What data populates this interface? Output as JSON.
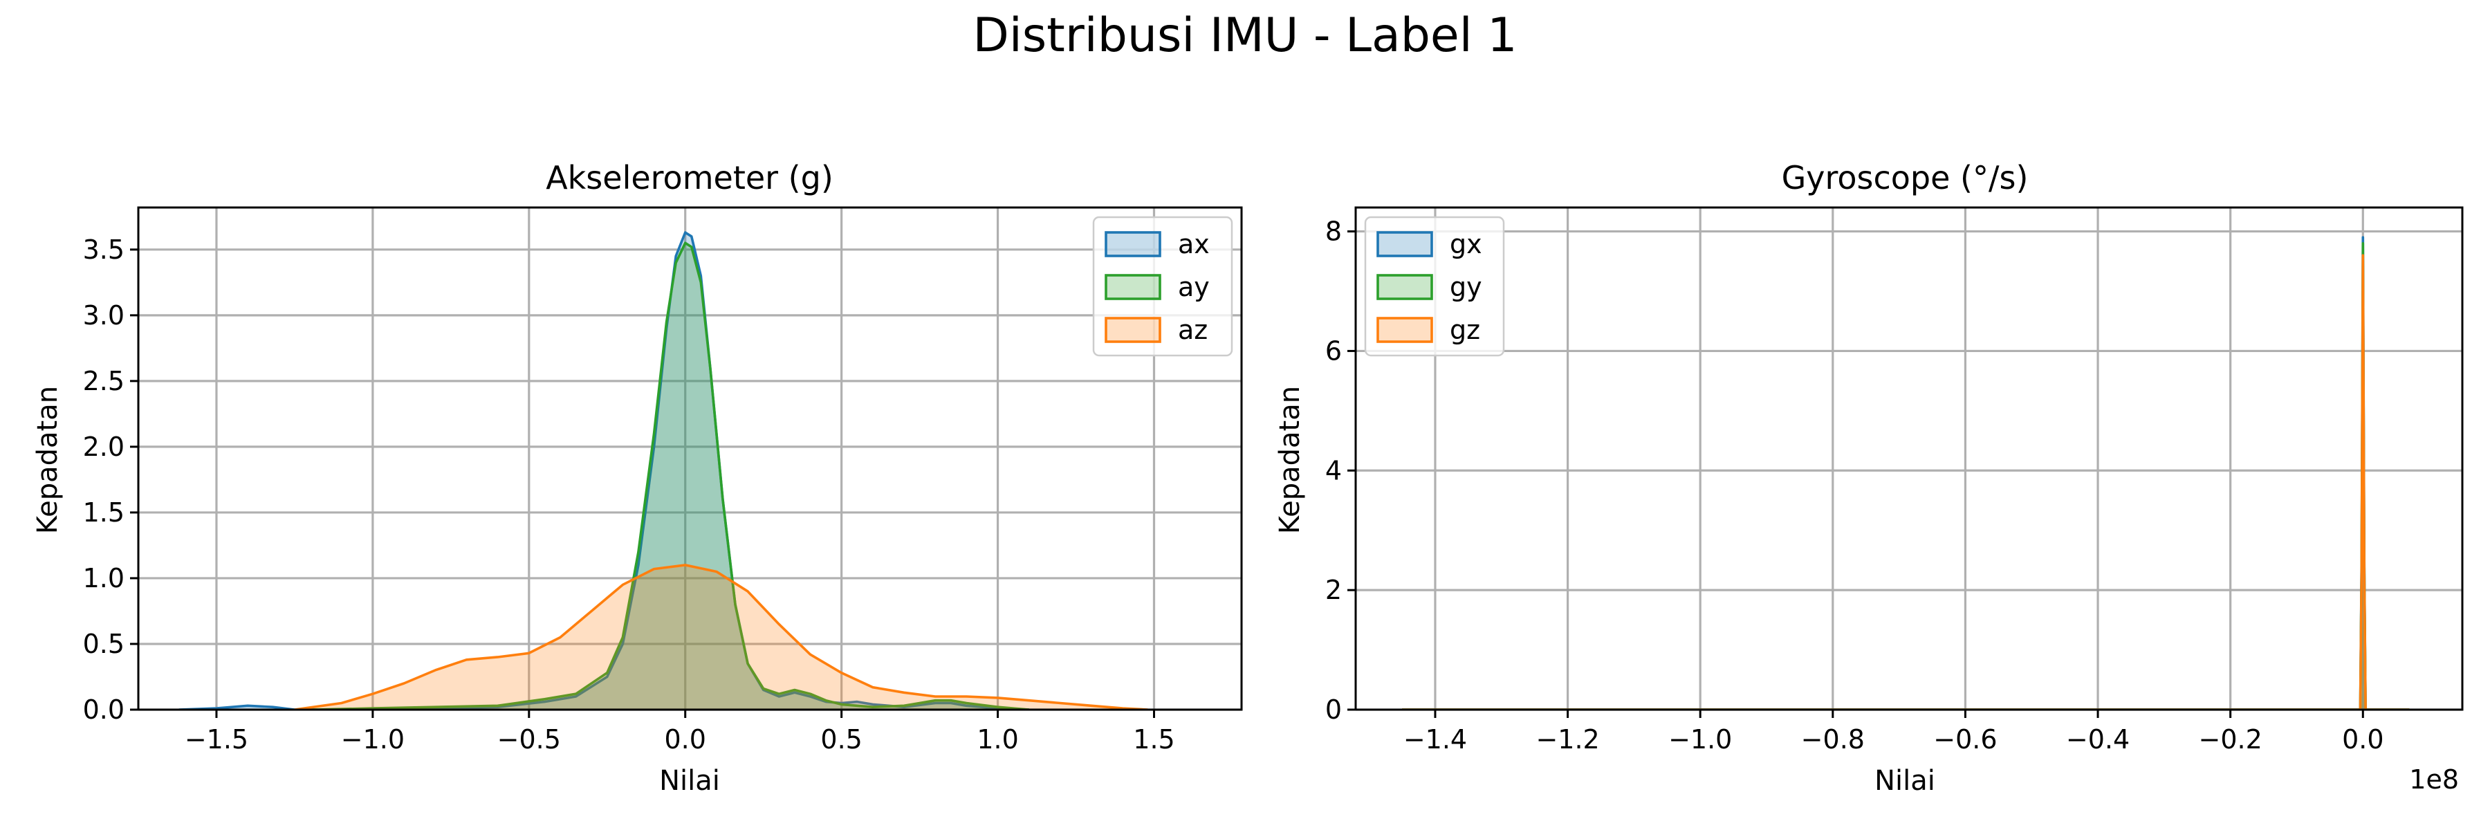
{
  "figure": {
    "suptitle": "Distribusi IMU - Label 1"
  },
  "chart_data": [
    {
      "type": "area",
      "title": "Akselerometer (g)",
      "xlabel": "Nilai",
      "ylabel": "Kepadatan",
      "xlim": [
        -1.75,
        1.78
      ],
      "ylim": [
        0,
        3.82
      ],
      "xticks": [
        -1.5,
        -1.0,
        -0.5,
        0.0,
        0.5,
        1.0,
        1.5
      ],
      "xtick_labels": [
        "−1.5",
        "−1.0",
        "−0.5",
        "0.0",
        "0.5",
        "1.0",
        "1.5"
      ],
      "yticks": [
        0.0,
        0.5,
        1.0,
        1.5,
        2.0,
        2.5,
        3.0,
        3.5
      ],
      "ytick_labels": [
        "0.0",
        "0.5",
        "1.0",
        "1.5",
        "2.0",
        "2.5",
        "3.0",
        "3.5"
      ],
      "grid": true,
      "legend_position": "upper-right",
      "series": [
        {
          "name": "ax",
          "color": "#1f77b4",
          "x": [
            -1.62,
            -1.5,
            -1.4,
            -1.32,
            -1.25,
            -1.0,
            -0.6,
            -0.45,
            -0.35,
            -0.25,
            -0.2,
            -0.15,
            -0.1,
            -0.06,
            -0.03,
            0.0,
            0.02,
            0.05,
            0.08,
            0.12,
            0.16,
            0.2,
            0.25,
            0.3,
            0.35,
            0.4,
            0.45,
            0.5,
            0.55,
            0.6,
            0.7,
            0.8,
            0.85,
            0.9,
            1.0,
            1.1
          ],
          "y": [
            0.0,
            0.01,
            0.03,
            0.02,
            0.0,
            0.0,
            0.02,
            0.06,
            0.1,
            0.25,
            0.5,
            1.1,
            2.0,
            2.9,
            3.45,
            3.63,
            3.6,
            3.3,
            2.6,
            1.6,
            0.8,
            0.35,
            0.15,
            0.1,
            0.13,
            0.1,
            0.06,
            0.05,
            0.06,
            0.04,
            0.02,
            0.05,
            0.05,
            0.03,
            0.01,
            0.0
          ]
        },
        {
          "name": "ay",
          "color": "#2ca02c",
          "x": [
            -1.2,
            -1.0,
            -0.6,
            -0.45,
            -0.35,
            -0.25,
            -0.2,
            -0.15,
            -0.1,
            -0.06,
            -0.03,
            0.0,
            0.02,
            0.05,
            0.08,
            0.12,
            0.16,
            0.2,
            0.25,
            0.3,
            0.35,
            0.4,
            0.45,
            0.5,
            0.55,
            0.6,
            0.7,
            0.8,
            0.85,
            0.9,
            1.0,
            1.1
          ],
          "y": [
            0.0,
            0.01,
            0.03,
            0.08,
            0.12,
            0.28,
            0.55,
            1.2,
            2.1,
            2.95,
            3.4,
            3.55,
            3.52,
            3.25,
            2.6,
            1.6,
            0.8,
            0.35,
            0.16,
            0.12,
            0.15,
            0.12,
            0.07,
            0.04,
            0.03,
            0.02,
            0.03,
            0.07,
            0.07,
            0.05,
            0.02,
            0.0
          ]
        },
        {
          "name": "az",
          "color": "#ff7f0e",
          "x": [
            -1.25,
            -1.1,
            -1.0,
            -0.9,
            -0.8,
            -0.7,
            -0.6,
            -0.5,
            -0.4,
            -0.3,
            -0.2,
            -0.1,
            0.0,
            0.1,
            0.2,
            0.3,
            0.4,
            0.5,
            0.6,
            0.7,
            0.8,
            0.9,
            1.0,
            1.1,
            1.2,
            1.3,
            1.4,
            1.48
          ],
          "y": [
            0.0,
            0.05,
            0.12,
            0.2,
            0.3,
            0.38,
            0.4,
            0.43,
            0.55,
            0.75,
            0.95,
            1.07,
            1.1,
            1.05,
            0.9,
            0.65,
            0.42,
            0.28,
            0.17,
            0.13,
            0.1,
            0.1,
            0.09,
            0.07,
            0.05,
            0.03,
            0.01,
            0.0
          ]
        }
      ]
    },
    {
      "type": "area",
      "title": "Gyroscope (°/s)",
      "xlabel": "Nilai",
      "ylabel": "Kepadatan",
      "x_multiplier": "1e8",
      "xlim": [
        -1.52,
        0.15
      ],
      "ylim": [
        0,
        8.4
      ],
      "xticks": [
        -1.4,
        -1.2,
        -1.0,
        -0.8,
        -0.6,
        -0.4,
        -0.2,
        0.0
      ],
      "xtick_labels": [
        "−1.4",
        "−1.2",
        "−1.0",
        "−0.8",
        "−0.6",
        "−0.4",
        "−0.2",
        "0.0"
      ],
      "yticks": [
        0,
        2,
        4,
        6,
        8
      ],
      "ytick_labels": [
        "0",
        "2",
        "4",
        "6",
        "8"
      ],
      "grid": true,
      "legend_position": "upper-left",
      "series": [
        {
          "name": "gx",
          "color": "#1f77b4",
          "x": [
            -1.45,
            -0.5,
            -0.004,
            -0.002,
            0.0,
            0.002,
            0.004,
            0.07
          ],
          "y": [
            0.0,
            0.0,
            0.0,
            2.5,
            7.9,
            2.5,
            0.0,
            0.0
          ]
        },
        {
          "name": "gy",
          "color": "#2ca02c",
          "x": [
            -1.45,
            -0.5,
            -0.004,
            -0.002,
            0.0,
            0.002,
            0.004,
            0.07
          ],
          "y": [
            0.0,
            0.0,
            0.0,
            2.4,
            7.8,
            2.4,
            0.0,
            0.0
          ]
        },
        {
          "name": "gz",
          "color": "#ff7f0e",
          "x": [
            -1.45,
            -0.5,
            -0.004,
            -0.002,
            0.0,
            0.002,
            0.004,
            0.07
          ],
          "y": [
            0.0,
            0.0,
            0.0,
            2.3,
            7.6,
            2.3,
            0.0,
            0.0
          ]
        }
      ]
    }
  ]
}
